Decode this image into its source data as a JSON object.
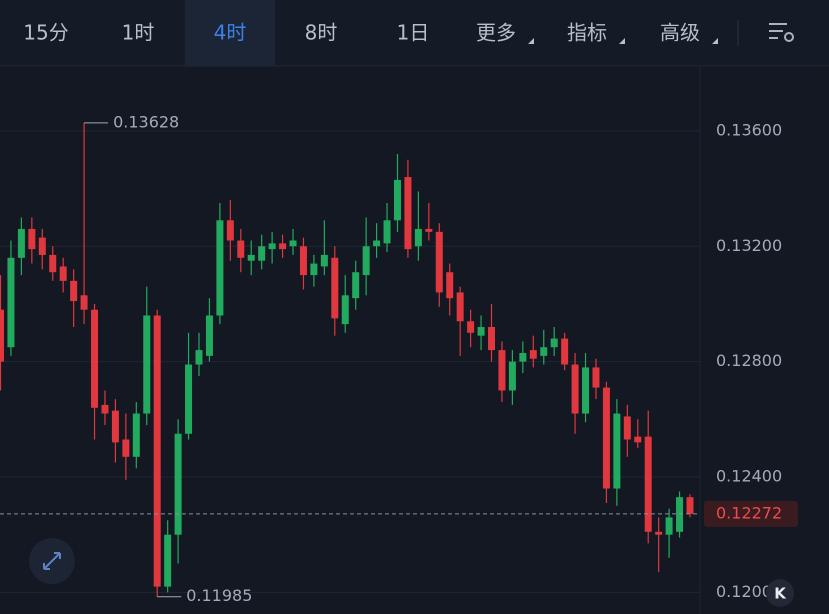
{
  "toolbar": {
    "items": [
      "15分",
      "1时",
      "4时",
      "8时",
      "1日",
      "更多",
      "指标",
      "高级"
    ],
    "selected": 2
  },
  "chart_data": {
    "type": "candlestick",
    "open": [
      0.1298,
      0.1285,
      0.1316,
      0.1326,
      0.1323,
      0.1317,
      0.1313,
      0.1308,
      0.1303,
      0.1298,
      0.1265,
      0.1263,
      0.1253,
      0.1247,
      0.1262,
      0.1296,
      0.1202,
      0.122,
      0.1255,
      0.1279,
      0.1282,
      0.1296,
      0.1329,
      0.1322,
      0.1315,
      0.1315,
      0.1319,
      0.1321,
      0.132,
      0.132,
      0.131,
      0.1313,
      0.1316,
      0.1293,
      0.1302,
      0.131,
      0.132,
      0.1321,
      0.1329,
      0.1344,
      0.132,
      0.1326,
      0.1325,
      0.1311,
      0.1304,
      0.1294,
      0.1289,
      0.1292,
      0.1284,
      0.127,
      0.128,
      0.1284,
      0.1282,
      0.1285,
      0.1288,
      0.1279,
      0.1262,
      0.1278,
      0.1271,
      0.1236,
      0.1261,
      0.1254,
      0.1254,
      0.1221,
      0.122,
      0.1221,
      0.1233
    ],
    "high": [
      0.131,
      0.1322,
      0.133,
      0.133,
      0.1326,
      0.132,
      0.1316,
      0.1312,
      0.13628,
      0.13,
      0.127,
      0.1267,
      0.1262,
      0.1266,
      0.1306,
      0.1298,
      0.1225,
      0.126,
      0.129,
      0.129,
      0.1302,
      0.1335,
      0.1336,
      0.1326,
      0.1322,
      0.1324,
      0.1325,
      0.1324,
      0.1326,
      0.1323,
      0.1317,
      0.1329,
      0.132,
      0.131,
      0.1315,
      0.133,
      0.1328,
      0.1335,
      0.1352,
      0.135,
      0.1339,
      0.1335,
      0.1328,
      0.1314,
      0.1306,
      0.1298,
      0.1296,
      0.13,
      0.1287,
      0.1284,
      0.1287,
      0.1289,
      0.1291,
      0.1292,
      0.129,
      0.1283,
      0.1283,
      0.1281,
      0.1273,
      0.1267,
      0.1265,
      0.126,
      0.1263,
      0.1226,
      0.1229,
      0.1235,
      0.1234
    ],
    "low": [
      0.127,
      0.1282,
      0.131,
      0.1314,
      0.1312,
      0.1308,
      0.1304,
      0.1292,
      0.1293,
      0.1253,
      0.1258,
      0.1245,
      0.1239,
      0.1243,
      0.1258,
      0.11985,
      0.12,
      0.121,
      0.1253,
      0.1275,
      0.128,
      0.1293,
      0.1315,
      0.1311,
      0.131,
      0.1312,
      0.1314,
      0.1316,
      0.1317,
      0.1305,
      0.1306,
      0.131,
      0.1289,
      0.129,
      0.1298,
      0.1303,
      0.1316,
      0.1318,
      0.1325,
      0.1316,
      0.1315,
      0.1322,
      0.1299,
      0.1296,
      0.1282,
      0.1285,
      0.1284,
      0.128,
      0.1266,
      0.1265,
      0.1276,
      0.1278,
      0.1279,
      0.1282,
      0.1277,
      0.1255,
      0.1259,
      0.1267,
      0.1231,
      0.123,
      0.1247,
      0.125,
      0.1217,
      0.1207,
      0.1212,
      0.1219,
      0.1226
    ],
    "close": [
      0.128,
      0.1316,
      0.1326,
      0.1319,
      0.1317,
      0.1311,
      0.1308,
      0.1301,
      0.1298,
      0.1264,
      0.1262,
      0.1252,
      0.1247,
      0.1262,
      0.1296,
      0.1202,
      0.122,
      0.1255,
      0.1279,
      0.1284,
      0.1296,
      0.1329,
      0.1322,
      0.1316,
      0.1317,
      0.132,
      0.1321,
      0.1319,
      0.1322,
      0.131,
      0.1314,
      0.1317,
      0.1295,
      0.1303,
      0.1311,
      0.132,
      0.1322,
      0.1329,
      0.1343,
      0.1319,
      0.1326,
      0.1325,
      0.1304,
      0.1302,
      0.1294,
      0.129,
      0.1292,
      0.1284,
      0.127,
      0.128,
      0.1283,
      0.1281,
      0.1285,
      0.1288,
      0.1279,
      0.1262,
      0.1278,
      0.1271,
      0.1236,
      0.1262,
      0.1253,
      0.1252,
      0.1221,
      0.122,
      0.1226,
      0.1233,
      0.12272
    ],
    "up_color": "#22ab5f",
    "down_color": "#e0383e",
    "ylim": [
      0.11925,
      0.13825
    ],
    "yticks": [
      {
        "value": 0.136,
        "label": "0.13600"
      },
      {
        "value": 0.132,
        "label": "0.13200"
      },
      {
        "value": 0.128,
        "label": "0.12800"
      },
      {
        "value": 0.124,
        "label": "0.12400"
      },
      {
        "value": 0.12,
        "label": "0.12000"
      }
    ],
    "grid": true,
    "last_price": 0.12272,
    "high_mark": 0.13628,
    "low_mark": 0.11985
  },
  "logo": "K"
}
